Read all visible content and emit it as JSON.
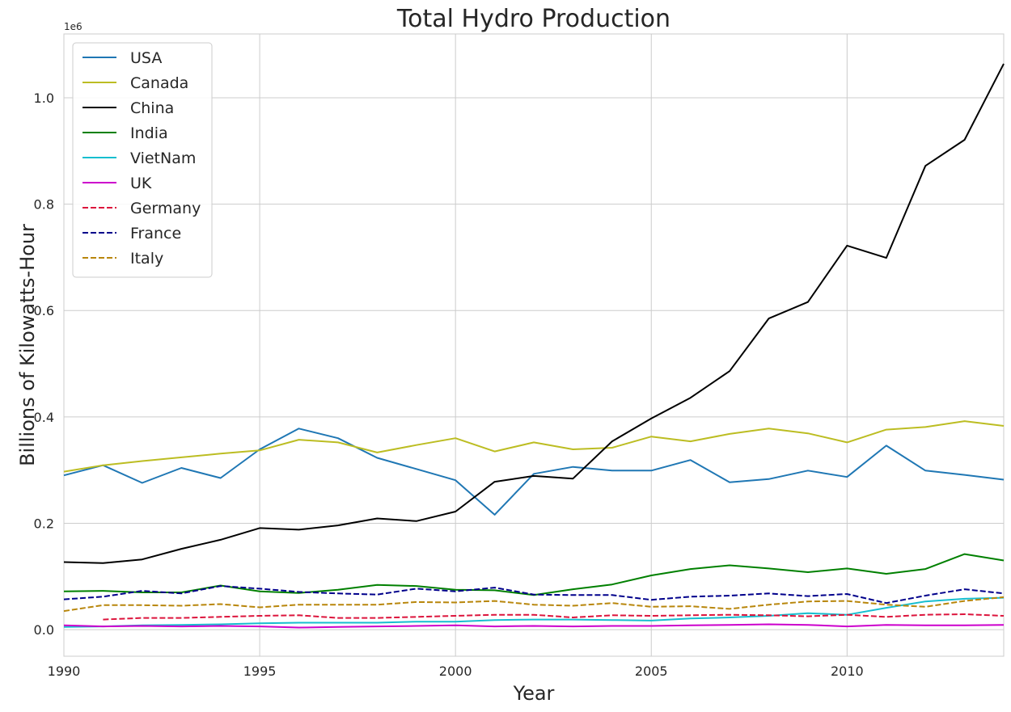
{
  "chart_data": {
    "type": "line",
    "title": "Total Hydro Production",
    "xlabel": "Year",
    "ylabel": "Billions of Kilowatts-Hour",
    "y_offset_text": "1e6",
    "xlim": [
      1990,
      2014
    ],
    "ylim": [
      -0.05,
      1.12
    ],
    "x_ticks": [
      1990,
      1995,
      2000,
      2005,
      2010
    ],
    "y_ticks": [
      0.0,
      0.2,
      0.4,
      0.6,
      0.8,
      1.0
    ],
    "x_tick_labels": [
      "1990",
      "1995",
      "2000",
      "2005",
      "2010"
    ],
    "y_tick_labels": [
      "0.0",
      "0.2",
      "0.4",
      "0.6",
      "0.8",
      "1.0"
    ],
    "grid": true,
    "legend_position": "top-left",
    "series": [
      {
        "name": "USA",
        "color": "#1f77b4",
        "dash": "solid",
        "x": [
          1990,
          1991,
          1992,
          1993,
          1994,
          1995,
          1996,
          1997,
          1998,
          1999,
          2000,
          2001,
          2002,
          2003,
          2004,
          2005,
          2006,
          2007,
          2008,
          2009,
          2010,
          2011,
          2012,
          2013,
          2014
        ],
        "values": [
          0.29,
          0.309,
          0.276,
          0.304,
          0.285,
          0.339,
          0.378,
          0.36,
          0.323,
          0.302,
          0.281,
          0.216,
          0.293,
          0.306,
          0.299,
          0.299,
          0.319,
          0.277,
          0.283,
          0.299,
          0.287,
          0.346,
          0.299,
          0.291,
          0.282
        ]
      },
      {
        "name": "Canada",
        "color": "#bcbd22",
        "dash": "solid",
        "x": [
          1990,
          1991,
          1992,
          1993,
          1994,
          1995,
          1996,
          1997,
          1998,
          1999,
          2000,
          2001,
          2002,
          2003,
          2004,
          2005,
          2006,
          2007,
          2008,
          2009,
          2010,
          2011,
          2012,
          2013,
          2014
        ],
        "values": [
          0.297,
          0.309,
          0.317,
          0.324,
          0.331,
          0.337,
          0.357,
          0.352,
          0.333,
          0.347,
          0.36,
          0.335,
          0.352,
          0.339,
          0.342,
          0.363,
          0.354,
          0.368,
          0.378,
          0.369,
          0.352,
          0.376,
          0.381,
          0.392,
          0.383
        ]
      },
      {
        "name": "China",
        "color": "#000000",
        "dash": "solid",
        "x": [
          1990,
          1991,
          1992,
          1993,
          1994,
          1995,
          1996,
          1997,
          1998,
          1999,
          2000,
          2001,
          2002,
          2003,
          2004,
          2005,
          2006,
          2007,
          2008,
          2009,
          2010,
          2011,
          2012,
          2013,
          2014
        ],
        "values": [
          0.127,
          0.125,
          0.132,
          0.152,
          0.169,
          0.191,
          0.188,
          0.196,
          0.209,
          0.204,
          0.222,
          0.278,
          0.289,
          0.284,
          0.354,
          0.397,
          0.436,
          0.486,
          0.585,
          0.616,
          0.722,
          0.699,
          0.872,
          0.921,
          1.064
        ]
      },
      {
        "name": "India",
        "color": "#008000",
        "dash": "solid",
        "x": [
          1990,
          1991,
          1992,
          1993,
          1994,
          1995,
          1996,
          1997,
          1998,
          1999,
          2000,
          2001,
          2002,
          2003,
          2004,
          2005,
          2006,
          2007,
          2008,
          2009,
          2010,
          2011,
          2012,
          2013,
          2014
        ],
        "values": [
          0.072,
          0.073,
          0.07,
          0.07,
          0.083,
          0.072,
          0.069,
          0.075,
          0.084,
          0.082,
          0.075,
          0.074,
          0.065,
          0.076,
          0.085,
          0.102,
          0.114,
          0.121,
          0.115,
          0.108,
          0.115,
          0.105,
          0.114,
          0.142,
          0.13
        ]
      },
      {
        "name": "VietNam",
        "color": "#17becf",
        "dash": "solid",
        "x": [
          1990,
          1991,
          1992,
          1993,
          1994,
          1995,
          1996,
          1997,
          1998,
          1999,
          2000,
          2001,
          2002,
          2003,
          2004,
          2005,
          2006,
          2007,
          2008,
          2009,
          2010,
          2011,
          2012,
          2013,
          2014
        ],
        "values": [
          0.005,
          0.006,
          0.008,
          0.009,
          0.01,
          0.012,
          0.013,
          0.013,
          0.013,
          0.015,
          0.015,
          0.018,
          0.019,
          0.019,
          0.018,
          0.017,
          0.021,
          0.023,
          0.026,
          0.031,
          0.028,
          0.041,
          0.053,
          0.058,
          0.06
        ]
      },
      {
        "name": "UK",
        "color": "#cc00cc",
        "dash": "solid",
        "x": [
          1990,
          1991,
          1992,
          1993,
          1994,
          1995,
          1996,
          1997,
          1998,
          1999,
          2000,
          2001,
          2002,
          2003,
          2004,
          2005,
          2006,
          2007,
          2008,
          2009,
          2010,
          2011,
          2012,
          2013,
          2014
        ],
        "values": [
          0.008,
          0.006,
          0.007,
          0.006,
          0.007,
          0.006,
          0.004,
          0.005,
          0.006,
          0.007,
          0.008,
          0.006,
          0.007,
          0.006,
          0.007,
          0.007,
          0.008,
          0.009,
          0.01,
          0.009,
          0.006,
          0.009,
          0.008,
          0.008,
          0.009
        ]
      },
      {
        "name": "Germany",
        "color": "#dc143c",
        "dash": "dashed",
        "x": [
          1991,
          1992,
          1993,
          1994,
          1995,
          1996,
          1997,
          1998,
          1999,
          2000,
          2001,
          2002,
          2003,
          2004,
          2005,
          2006,
          2007,
          2008,
          2009,
          2010,
          2011,
          2012,
          2013,
          2014
        ],
        "values": [
          0.019,
          0.022,
          0.022,
          0.024,
          0.026,
          0.027,
          0.022,
          0.022,
          0.024,
          0.026,
          0.028,
          0.028,
          0.023,
          0.027,
          0.026,
          0.027,
          0.028,
          0.027,
          0.025,
          0.028,
          0.024,
          0.028,
          0.029,
          0.026
        ]
      },
      {
        "name": "France",
        "color": "#00008b",
        "dash": "dashed",
        "x": [
          1990,
          1991,
          1992,
          1993,
          1994,
          1995,
          1996,
          1997,
          1998,
          1999,
          2000,
          2001,
          2002,
          2003,
          2004,
          2005,
          2006,
          2007,
          2008,
          2009,
          2010,
          2011,
          2012,
          2013,
          2014
        ],
        "values": [
          0.057,
          0.062,
          0.073,
          0.068,
          0.082,
          0.077,
          0.071,
          0.068,
          0.066,
          0.077,
          0.072,
          0.079,
          0.066,
          0.065,
          0.065,
          0.056,
          0.062,
          0.064,
          0.068,
          0.063,
          0.067,
          0.05,
          0.064,
          0.076,
          0.068
        ]
      },
      {
        "name": "Italy",
        "color": "#b8860b",
        "dash": "dashed",
        "x": [
          1990,
          1991,
          1992,
          1993,
          1994,
          1995,
          1996,
          1997,
          1998,
          1999,
          2000,
          2001,
          2002,
          2003,
          2004,
          2005,
          2006,
          2007,
          2008,
          2009,
          2010,
          2011,
          2012,
          2013,
          2014
        ],
        "values": [
          0.035,
          0.046,
          0.046,
          0.045,
          0.048,
          0.042,
          0.047,
          0.047,
          0.047,
          0.052,
          0.051,
          0.054,
          0.047,
          0.045,
          0.05,
          0.043,
          0.044,
          0.039,
          0.047,
          0.053,
          0.054,
          0.047,
          0.043,
          0.054,
          0.061
        ]
      }
    ]
  }
}
